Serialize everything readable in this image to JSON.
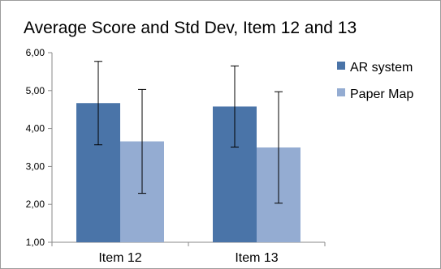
{
  "chart_data": {
    "type": "bar",
    "title": "Average Score and Std Dev, Item 12 and 13",
    "xlabel": "",
    "ylabel": "",
    "ylim": [
      1,
      6
    ],
    "yticks": [
      "1,00",
      "2,00",
      "3,00",
      "4,00",
      "5,00",
      "6,00"
    ],
    "categories": [
      "Item 12",
      "Item 13"
    ],
    "series": [
      {
        "name": "AR system",
        "color": "#4a74a8",
        "values": [
          4.67,
          4.58
        ],
        "error": [
          1.1,
          1.07
        ]
      },
      {
        "name": "Paper Map",
        "color": "#94acd2",
        "values": [
          3.66,
          3.5
        ],
        "error": [
          1.37,
          1.47
        ]
      }
    ],
    "legend": "right",
    "grid": false,
    "error_bars": true
  }
}
